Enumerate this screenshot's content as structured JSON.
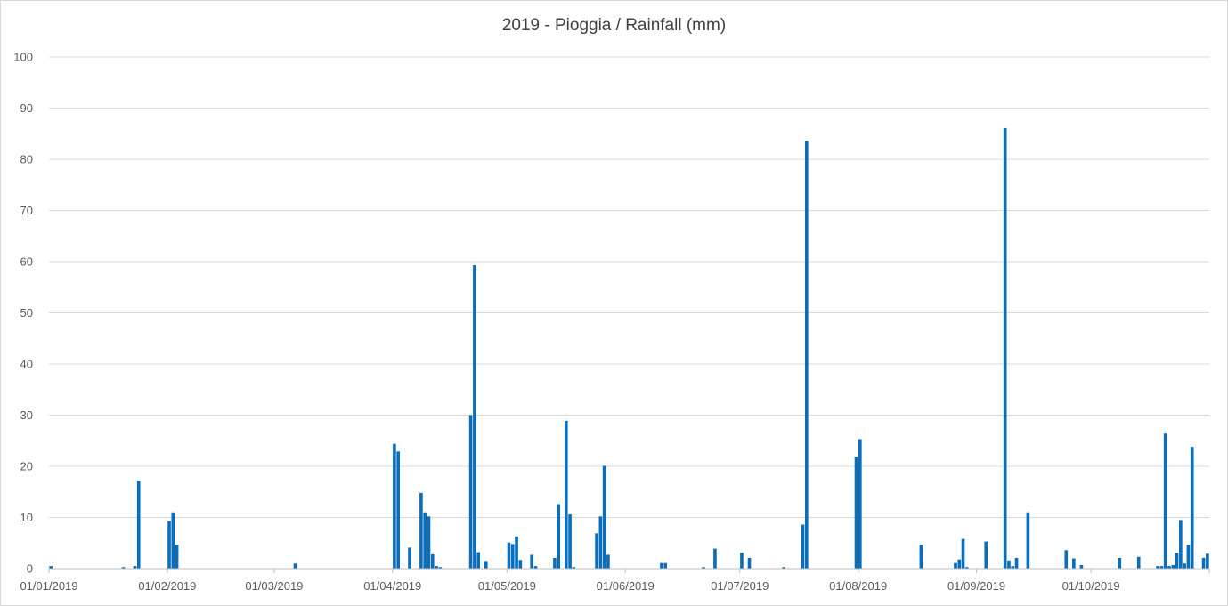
{
  "chart_data": {
    "type": "bar",
    "title": "2019 - Pioggia / Rainfall (mm)",
    "xlabel": "",
    "ylabel": "",
    "ylim": [
      0,
      100
    ],
    "xlim": [
      "2019-01-01",
      "2019-10-31"
    ],
    "y_ticks": [
      "0",
      "10",
      "20",
      "30",
      "40",
      "50",
      "60",
      "70",
      "80",
      "90",
      "100"
    ],
    "x_ticks": [
      {
        "date": "2019-01-01",
        "label": "01/01/2019"
      },
      {
        "date": "2019-02-01",
        "label": "01/02/2019"
      },
      {
        "date": "2019-03-01",
        "label": "01/03/2019"
      },
      {
        "date": "2019-04-01",
        "label": "01/04/2019"
      },
      {
        "date": "2019-05-01",
        "label": "01/05/2019"
      },
      {
        "date": "2019-06-01",
        "label": "01/06/2019"
      },
      {
        "date": "2019-07-01",
        "label": "01/07/2019"
      },
      {
        "date": "2019-08-01",
        "label": "01/08/2019"
      },
      {
        "date": "2019-09-01",
        "label": "01/09/2019"
      },
      {
        "date": "2019-10-01",
        "label": "01/10/2019"
      }
    ],
    "grid": true,
    "legend": "none",
    "color": "#0a6ebd",
    "series": [
      {
        "x": [
          "2019-01-01",
          "2019-01-20",
          "2019-01-23",
          "2019-01-24",
          "2019-02-01",
          "2019-02-02",
          "2019-02-03",
          "2019-03-06",
          "2019-04-01",
          "2019-04-02",
          "2019-04-05",
          "2019-04-08",
          "2019-04-09",
          "2019-04-10",
          "2019-04-11",
          "2019-04-12",
          "2019-04-13",
          "2019-04-21",
          "2019-04-22",
          "2019-04-23",
          "2019-04-25",
          "2019-05-01",
          "2019-05-02",
          "2019-05-03",
          "2019-05-04",
          "2019-05-07",
          "2019-05-08",
          "2019-05-13",
          "2019-05-14",
          "2019-05-16",
          "2019-05-17",
          "2019-05-18",
          "2019-05-24",
          "2019-05-25",
          "2019-05-26",
          "2019-05-27",
          "2019-06-10",
          "2019-06-11",
          "2019-06-21",
          "2019-06-24",
          "2019-07-01",
          "2019-07-03",
          "2019-07-12",
          "2019-07-17",
          "2019-07-18",
          "2019-07-31",
          "2019-08-01",
          "2019-08-17",
          "2019-08-26",
          "2019-08-27",
          "2019-08-28",
          "2019-08-29",
          "2019-09-03",
          "2019-09-08",
          "2019-09-09",
          "2019-09-10",
          "2019-09-11",
          "2019-09-14",
          "2019-09-24",
          "2019-09-26",
          "2019-09-28",
          "2019-10-08",
          "2019-10-13",
          "2019-10-18",
          "2019-10-19",
          "2019-10-20",
          "2019-10-21",
          "2019-10-22",
          "2019-10-23",
          "2019-10-24",
          "2019-10-25",
          "2019-10-26",
          "2019-10-27",
          "2019-10-30",
          "2019-10-31"
        ],
        "values": [
          0.5,
          0.3,
          0.5,
          17.2,
          9.3,
          11.0,
          4.7,
          1.0,
          24.4,
          22.9,
          4.1,
          14.8,
          11.0,
          10.2,
          2.8,
          0.5,
          0.3,
          30.0,
          59.3,
          3.2,
          1.5,
          5.1,
          4.8,
          6.3,
          1.7,
          2.7,
          0.5,
          2.1,
          12.6,
          28.9,
          10.6,
          0.3,
          6.9,
          10.2,
          20.1,
          2.7,
          1.1,
          1.1,
          0.3,
          3.9,
          3.1,
          2.1,
          0.3,
          8.6,
          83.6,
          21.9,
          25.3,
          4.7,
          1.1,
          1.8,
          5.8,
          0.3,
          5.3,
          86.1,
          1.6,
          0.5,
          2.1,
          11.0,
          3.6,
          2.0,
          0.7,
          2.1,
          2.3,
          0.5,
          0.5,
          26.4,
          0.5,
          0.7,
          3.1,
          9.5,
          1.0,
          4.7,
          23.8,
          2.1,
          2.9
        ]
      }
    ]
  }
}
